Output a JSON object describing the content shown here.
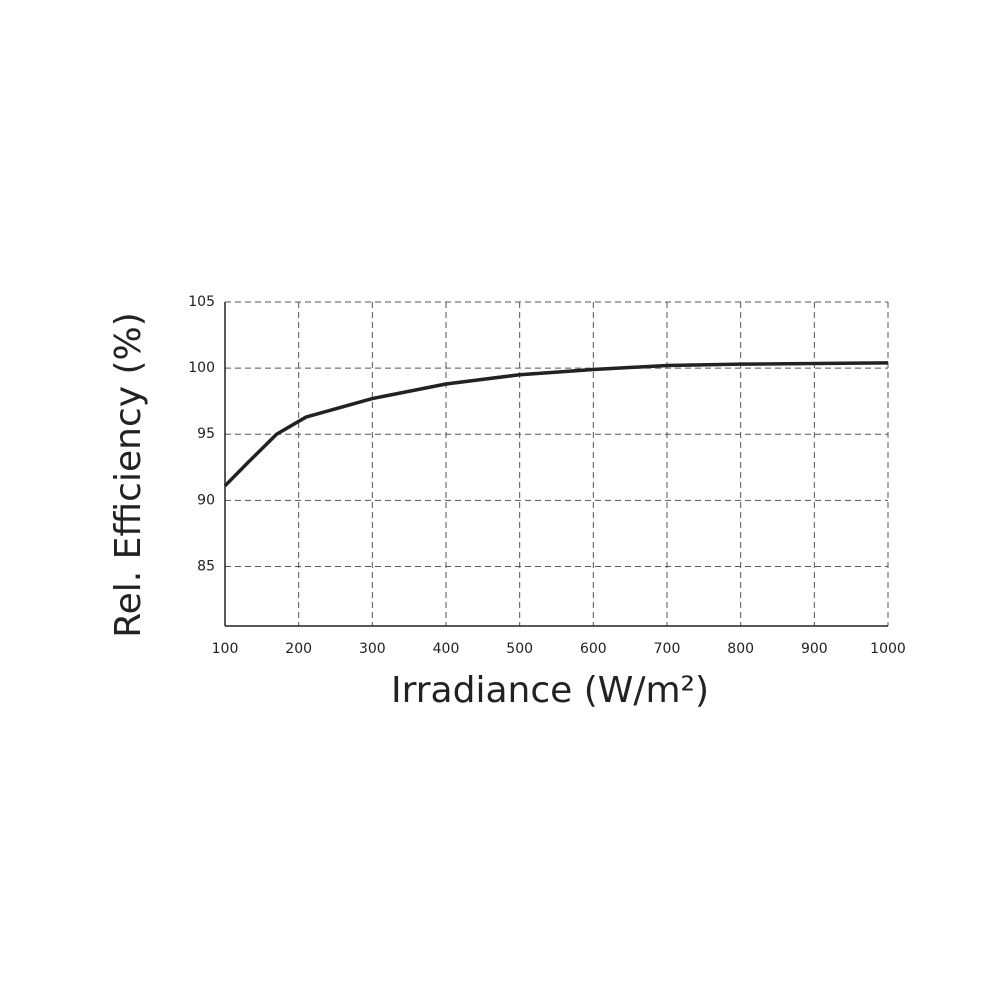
{
  "chart_data": {
    "type": "line",
    "x_label": "Irradiance (W/m²)",
    "y_label": "Rel. Efficiency (%)",
    "x": [
      100,
      130,
      170,
      210,
      300,
      400,
      500,
      600,
      700,
      800,
      900,
      1000
    ],
    "series": [
      {
        "name": "Rel. Efficiency",
        "color": "#222222",
        "values": [
          91.1,
          92.8,
          95.0,
          96.3,
          97.7,
          98.8,
          99.5,
          99.9,
          100.2,
          100.3,
          100.35,
          100.4
        ]
      }
    ],
    "xlim": [
      100,
      1000
    ],
    "xticks": [
      100,
      200,
      300,
      400,
      500,
      600,
      700,
      800,
      900,
      1000
    ],
    "ylim": [
      80.5,
      105
    ],
    "yticks": [
      85,
      90,
      95,
      100,
      105
    ],
    "grid": true
  }
}
